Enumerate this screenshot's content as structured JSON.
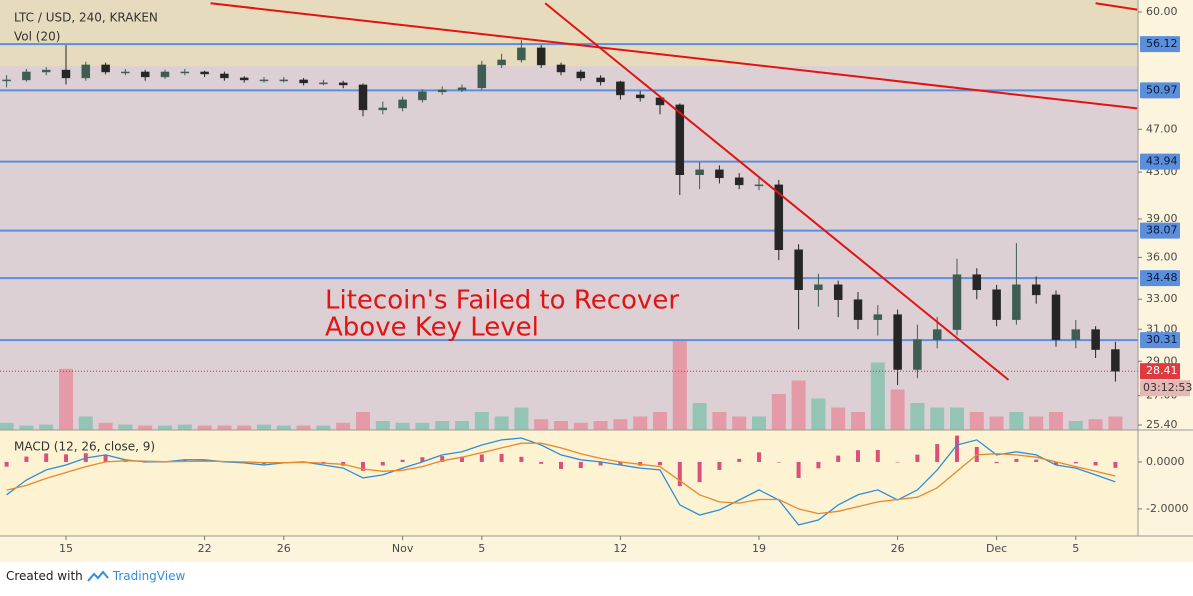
{
  "chart_data": [
    {
      "type": "candlestick",
      "title": "LTC / USD, 240, KRAKEN",
      "subtitle": "Vol (20)",
      "annotation": [
        "Litecoin's Failed to Recover",
        "Above Key Level"
      ],
      "categories": [
        null,
        null,
        null,
        "15",
        null,
        null,
        null,
        null,
        null,
        null,
        "22",
        null,
        null,
        null,
        "26",
        null,
        null,
        null,
        null,
        null,
        "Nov",
        null,
        null,
        null,
        "5",
        null,
        null,
        null,
        null,
        null,
        null,
        "12",
        null,
        null,
        null,
        null,
        null,
        null,
        "19",
        null,
        null,
        null,
        null,
        null,
        null,
        "26",
        null,
        null,
        null,
        null,
        "Dec",
        null,
        null,
        null,
        "5",
        null,
        null
      ],
      "open": [
        52.0,
        52.09,
        52.96,
        53.17,
        52.31,
        53.74,
        52.96,
        52.96,
        52.42,
        52.96,
        52.96,
        52.74,
        52.31,
        52.09,
        52.09,
        52.09,
        51.77,
        51.77,
        51.55,
        48.94,
        49.14,
        49.97,
        50.81,
        51.02,
        51.24,
        53.74,
        54.3,
        55.68,
        53.74,
        52.96,
        52.31,
        51.88,
        50.49,
        50.18,
        49.45,
        42.76,
        43.2,
        42.49,
        41.87,
        41.87,
        36.58,
        33.66,
        34.01,
        32.97,
        31.63,
        31.96,
        28.51,
        30.34,
        30.98,
        34.73,
        33.66,
        31.63,
        34.01,
        33.3,
        30.34,
        30.98,
        29.72
      ],
      "high": [
        52.6,
        53.3,
        53.5,
        56.0,
        54.1,
        54.0,
        53.3,
        53.2,
        53.2,
        53.3,
        53.1,
        53.0,
        52.5,
        52.4,
        52.4,
        52.3,
        52.1,
        52.0,
        51.7,
        49.8,
        50.3,
        51.1,
        51.4,
        51.6,
        54.2,
        55.0,
        56.6,
        56.0,
        54.0,
        53.2,
        52.6,
        52.0,
        50.9,
        50.4,
        49.6,
        43.9,
        43.6,
        42.9,
        42.6,
        42.3,
        37.0,
        34.8,
        34.3,
        33.5,
        32.6,
        32.3,
        31.3,
        31.8,
        35.9,
        35.2,
        34.0,
        37.1,
        34.6,
        33.6,
        31.6,
        31.2,
        30.2
      ],
      "low": [
        51.3,
        51.9,
        52.6,
        51.6,
        52.0,
        52.7,
        52.6,
        52.0,
        52.2,
        52.6,
        52.4,
        52.0,
        51.8,
        51.8,
        51.8,
        51.5,
        51.5,
        51.2,
        48.3,
        48.5,
        48.8,
        49.7,
        50.5,
        50.8,
        51.0,
        53.4,
        54.0,
        53.4,
        52.6,
        52.0,
        51.5,
        50.0,
        49.8,
        48.5,
        41.0,
        41.5,
        42.0,
        41.5,
        41.4,
        35.8,
        31.0,
        32.5,
        31.8,
        31.0,
        30.6,
        27.6,
        28.0,
        29.8,
        30.6,
        33.0,
        31.2,
        31.3,
        32.7,
        29.9,
        29.8,
        29.2,
        27.8
      ],
      "close": [
        52.09,
        52.96,
        53.17,
        52.31,
        53.74,
        52.96,
        52.96,
        52.42,
        52.96,
        52.96,
        52.74,
        52.31,
        52.09,
        52.09,
        52.09,
        51.77,
        51.77,
        51.55,
        48.94,
        49.14,
        49.97,
        50.81,
        51.02,
        51.24,
        53.74,
        54.3,
        55.68,
        53.74,
        52.96,
        52.31,
        51.88,
        50.49,
        50.18,
        49.45,
        42.76,
        43.2,
        42.49,
        41.87,
        41.87,
        36.58,
        33.66,
        34.01,
        32.97,
        31.63,
        31.96,
        28.51,
        30.34,
        30.98,
        34.73,
        33.66,
        31.63,
        34.01,
        33.3,
        30.34,
        30.98,
        29.72,
        28.41
      ],
      "volume": [
        8,
        5,
        6,
        68,
        15,
        8,
        6,
        5,
        5,
        6,
        5,
        5,
        5,
        6,
        5,
        5,
        5,
        8,
        20,
        10,
        8,
        8,
        10,
        10,
        20,
        15,
        25,
        12,
        10,
        8,
        10,
        12,
        15,
        20,
        100,
        30,
        20,
        15,
        15,
        40,
        55,
        35,
        25,
        20,
        75,
        45,
        30,
        25,
        25,
        20,
        15,
        20,
        15,
        20,
        10,
        12,
        15
      ],
      "up_color": "#3f5d52",
      "down_color": "#262626",
      "volume_up_color": "#93c4b4",
      "volume_down_color": "#e59aa8",
      "log_scale": true,
      "ylim": [
        25.4,
        60
      ],
      "yticks": [
        {
          "value": 60,
          "label": "60.00"
        },
        {
          "value": 47,
          "label": "47.00"
        },
        {
          "value": 43,
          "label": "43.00"
        },
        {
          "value": 39,
          "label": "39.00"
        },
        {
          "value": 36,
          "label": "36.00"
        },
        {
          "value": 33,
          "label": "33.00"
        },
        {
          "value": 31,
          "label": "31.00"
        },
        {
          "value": 29,
          "label": "29.00"
        },
        {
          "value": 27,
          "label": "27.00"
        },
        {
          "value": 25.4,
          "label": "25.40"
        }
      ],
      "zone": [
        53.6,
        61.5
      ],
      "levels": [
        56.12,
        50.97,
        43.94,
        38.07,
        34.48,
        30.31
      ],
      "level_color": "#5b8fdc",
      "trendlines": [
        {
          "x": [
            10.3,
            57.1
          ],
          "y": [
            61.1,
            49.1
          ]
        },
        {
          "x": [
            27.2,
            50.6
          ],
          "y": [
            61.1,
            27.9
          ]
        },
        {
          "x": [
            55.0,
            57.1
          ],
          "y": [
            61.1,
            60.3
          ]
        }
      ],
      "trendline_color": "#e01414",
      "last_price": 28.41,
      "countdown": "03:12:53"
    },
    {
      "type": "macd",
      "title": "MACD (12, 26, close, 9)",
      "series": [
        {
          "style": "histogram",
          "color": "#d9507a",
          "values": [
            -0.2,
            0.23,
            0.36,
            0.32,
            0.37,
            0.3,
            0.04,
            -0.03,
            -0.01,
            0.07,
            0.06,
            -0.02,
            -0.04,
            -0.1,
            -0.01,
            0.02,
            -0.08,
            -0.16,
            -0.38,
            -0.15,
            0.09,
            0.2,
            0.25,
            0.23,
            0.32,
            0.34,
            0.22,
            -0.08,
            -0.3,
            -0.26,
            -0.15,
            -0.13,
            -0.16,
            -0.14,
            -1.03,
            -0.86,
            -0.34,
            0.13,
            0.41,
            -0.02,
            -0.68,
            -0.27,
            0.27,
            0.5,
            0.51,
            -0.02,
            0.31,
            0.76,
            1.12,
            0.64,
            -0.05,
            0.13,
            0.1,
            -0.13,
            -0.06,
            -0.15,
            -0.25
          ]
        },
        {
          "style": "line",
          "color": "#2d8fd8",
          "values": [
            -1.4,
            -0.77,
            -0.34,
            -0.13,
            0.17,
            0.3,
            0.09,
            0,
            0,
            0.09,
            0.09,
            0,
            -0.04,
            -0.13,
            -0.04,
            0,
            -0.13,
            -0.26,
            -0.68,
            -0.55,
            -0.26,
            0,
            0.3,
            0.43,
            0.72,
            0.94,
            1.02,
            0.72,
            0.3,
            0.09,
            0,
            -0.13,
            -0.26,
            -0.34,
            -1.83,
            -2.26,
            -2.04,
            -1.62,
            -1.19,
            -1.62,
            -2.68,
            -2.47,
            -1.83,
            -1.4,
            -1.19,
            -1.62,
            -1.19,
            -0.34,
            0.72,
            0.94,
            0.3,
            0.43,
            0.3,
            -0.13,
            -0.26,
            -0.55,
            -0.85
          ]
        },
        {
          "style": "line",
          "color": "#e8892b",
          "values": [
            -1.2,
            -1.0,
            -0.7,
            -0.45,
            -0.2,
            0,
            0.05,
            0.03,
            0.01,
            0.02,
            0.03,
            0.02,
            0,
            -0.03,
            -0.03,
            -0.02,
            -0.05,
            -0.1,
            -0.3,
            -0.4,
            -0.35,
            -0.2,
            0.05,
            0.2,
            0.4,
            0.6,
            0.8,
            0.8,
            0.6,
            0.35,
            0.15,
            0,
            -0.1,
            -0.2,
            -0.8,
            -1.4,
            -1.7,
            -1.75,
            -1.6,
            -1.6,
            -2.0,
            -2.2,
            -2.1,
            -1.9,
            -1.7,
            -1.6,
            -1.5,
            -1.1,
            -0.4,
            0.3,
            0.35,
            0.3,
            0.2,
            0,
            -0.2,
            -0.4,
            -0.6
          ]
        }
      ],
      "ylim": [
        -3.11,
        1.36
      ],
      "yticks": [
        {
          "value": 0,
          "label": "0.0000"
        },
        {
          "value": -2,
          "label": "-2.0000"
        }
      ]
    }
  ],
  "footer": {
    "prefix": "Created with",
    "brand": "TradingView"
  }
}
